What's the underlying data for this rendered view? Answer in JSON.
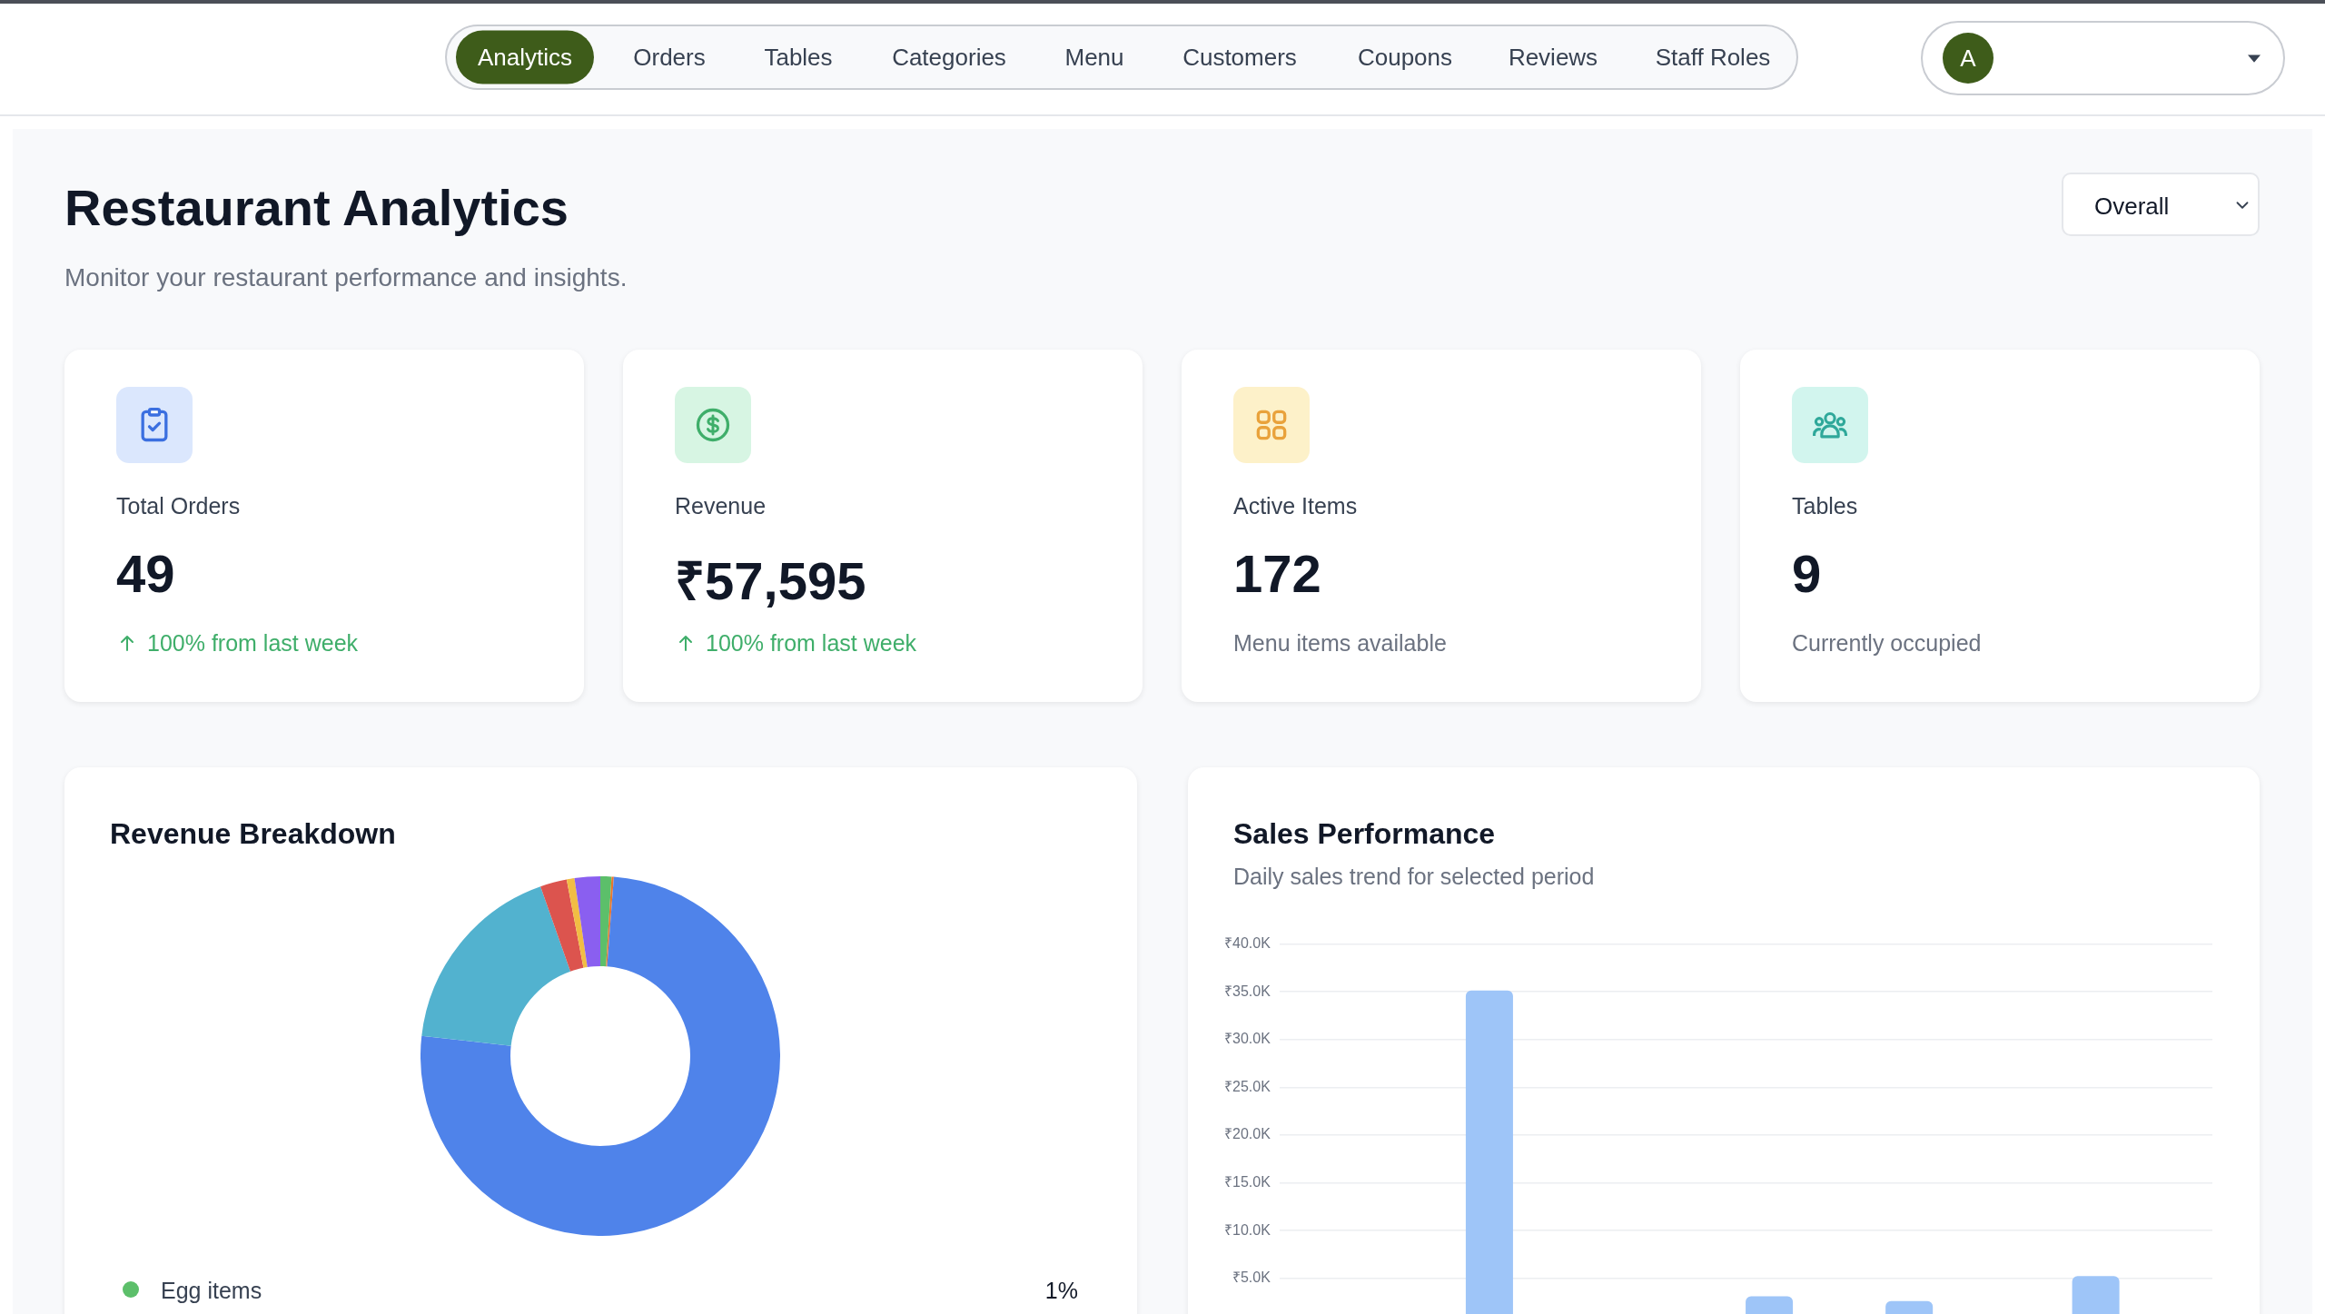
{
  "chart_data": [
    {
      "type": "other",
      "title": "Restaurant Analytics",
      "subtitle": "Monitor your restaurant performance and insights.",
      "annotations": [
        "Analytics",
        "Orders",
        "Tables",
        "Categories",
        "Menu",
        "Customers",
        "Coupons",
        "Reviews",
        "Staff Roles",
        "A",
        "Overall"
      ]
    },
    {
      "type": "other",
      "title": "Total Orders",
      "annotations": [
        "49",
        "100% from last week"
      ],
      "color": "#3fae6a"
    },
    {
      "type": "other",
      "title": "Revenue",
      "annotations": [
        "₹57,595",
        "100% from last week"
      ],
      "color": "#3fae6a"
    },
    {
      "type": "other",
      "title": "Active Items",
      "annotations": [
        "172",
        "Menu items available"
      ],
      "color": "#6b7280"
    },
    {
      "type": "other",
      "title": "Tables",
      "annotations": [
        "9",
        "Currently occupied"
      ],
      "color": "#6b7280"
    },
    {
      "type": "donut",
      "title": "Revenue Breakdown",
      "categories": [
        "Egg items",
        null,
        null,
        null,
        null,
        null,
        null
      ],
      "values": [
        1,
        0.2,
        75.6,
        17.8,
        2.4,
        0.7,
        2.3
      ],
      "colors": [
        "#5cbf6a",
        "#e8772e",
        "#4f83ea",
        "#52b2cf",
        "#dc544e",
        "#f1bd44",
        "#8a5ff0"
      ],
      "value_labels": [
        "1%",
        null,
        null,
        null,
        null,
        null,
        null
      ]
    },
    {
      "type": "bar",
      "title": "Sales Performance",
      "subtitle": "Daily sales trend for selected period",
      "categories": [
        null,
        null,
        null,
        null,
        null,
        null,
        null,
        null,
        null,
        null,
        null,
        null,
        null,
        null,
        null,
        null,
        null,
        null,
        null,
        null
      ],
      "values": [
        null,
        null,
        null,
        null,
        35100,
        null,
        null,
        null,
        null,
        null,
        3100,
        null,
        null,
        2600,
        null,
        null,
        null,
        5200,
        null,
        null
      ],
      "color": "#9ec5f8",
      "ylim": [
        0,
        40000
      ],
      "yticks": [
        {
          "value": 5000,
          "label": "₹5.0K"
        },
        {
          "value": 10000,
          "label": "₹10.0K"
        },
        {
          "value": 15000,
          "label": "₹15.0K"
        },
        {
          "value": 20000,
          "label": "₹20.0K"
        },
        {
          "value": 25000,
          "label": "₹25.0K"
        },
        {
          "value": 30000,
          "label": "₹30.0K"
        },
        {
          "value": 35000,
          "label": "₹35.0K"
        },
        {
          "value": 40000,
          "label": "₹40.0K"
        }
      ],
      "grid": "y",
      "tick_labels": "y"
    }
  ]
}
